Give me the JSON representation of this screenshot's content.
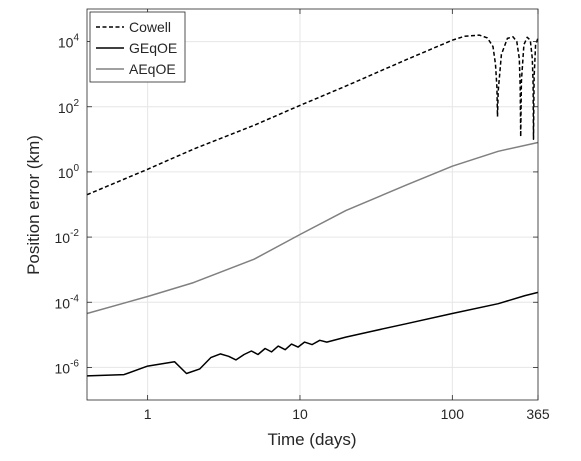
{
  "chart_data": {
    "type": "line",
    "xlabel": "Time (days)",
    "ylabel": "Position error (km)",
    "xscale": "log",
    "yscale": "log",
    "xlim": [
      0.4,
      365
    ],
    "ylim": [
      1e-07,
      100000.0
    ],
    "xticks": [
      {
        "value": 1,
        "label": "1"
      },
      {
        "value": 10,
        "label": "10"
      },
      {
        "value": 100,
        "label": "100"
      },
      {
        "value": 365,
        "label": "365"
      }
    ],
    "yticks": [
      {
        "value": 1e-06,
        "base": "10",
        "exp": "-6"
      },
      {
        "value": 0.0001,
        "base": "10",
        "exp": "-4"
      },
      {
        "value": 0.01,
        "base": "10",
        "exp": "-2"
      },
      {
        "value": 1,
        "base": "10",
        "exp": "0"
      },
      {
        "value": 100,
        "base": "10",
        "exp": "2"
      },
      {
        "value": 10000,
        "base": "10",
        "exp": "4"
      }
    ],
    "grid": true,
    "legend_position": "top-left",
    "series": [
      {
        "name": "Cowell",
        "color": "#000000",
        "style": "dashed",
        "points": [
          [
            0.4,
            0.2
          ],
          [
            1,
            1.2
          ],
          [
            2,
            5
          ],
          [
            5,
            27
          ],
          [
            10,
            110
          ],
          [
            20,
            430
          ],
          [
            50,
            2800
          ],
          [
            100,
            11000
          ],
          [
            120,
            14500
          ],
          [
            150,
            15800
          ],
          [
            170,
            13000
          ],
          [
            185,
            7000
          ],
          [
            192,
            2000
          ],
          [
            196,
            400
          ],
          [
            198,
            50
          ],
          [
            200,
            300
          ],
          [
            210,
            4000
          ],
          [
            230,
            12500
          ],
          [
            250,
            14000
          ],
          [
            265,
            10000
          ],
          [
            275,
            3000
          ],
          [
            279,
            400
          ],
          [
            281,
            12
          ],
          [
            284,
            600
          ],
          [
            295,
            8000
          ],
          [
            310,
            13500
          ],
          [
            325,
            11000
          ],
          [
            335,
            3000
          ],
          [
            339,
            500
          ],
          [
            341,
            10
          ],
          [
            344,
            800
          ],
          [
            352,
            8000
          ],
          [
            365,
            13000
          ]
        ]
      },
      {
        "name": "GEqOE",
        "color": "#000000",
        "style": "solid",
        "points": [
          [
            0.4,
            5.5e-07
          ],
          [
            0.7,
            6e-07
          ],
          [
            1,
            1.1e-06
          ],
          [
            1.5,
            1.5e-06
          ],
          [
            1.8,
            6.5e-07
          ],
          [
            2.2,
            9e-07
          ],
          [
            2.6,
            2e-06
          ],
          [
            3,
            2.6e-06
          ],
          [
            3.4,
            2.2e-06
          ],
          [
            3.8,
            1.7e-06
          ],
          [
            4.3,
            2.5e-06
          ],
          [
            4.8,
            3.2e-06
          ],
          [
            5.3,
            2.5e-06
          ],
          [
            5.9,
            3.8e-06
          ],
          [
            6.5,
            3e-06
          ],
          [
            7.2,
            4.5e-06
          ],
          [
            8,
            3.5e-06
          ],
          [
            8.8,
            5.2e-06
          ],
          [
            9.7,
            4.2e-06
          ],
          [
            10.7,
            6e-06
          ],
          [
            12,
            5e-06
          ],
          [
            13.5,
            6.8e-06
          ],
          [
            15,
            6e-06
          ],
          [
            20,
            8.5e-06
          ],
          [
            30,
            1.3e-05
          ],
          [
            50,
            2.2e-05
          ],
          [
            100,
            4.5e-05
          ],
          [
            200,
            9e-05
          ],
          [
            300,
            0.00016
          ],
          [
            365,
            0.0002
          ]
        ]
      },
      {
        "name": "AEqOE",
        "color": "#808080",
        "style": "solid",
        "points": [
          [
            0.4,
            4.5e-05
          ],
          [
            1,
            0.00015
          ],
          [
            2,
            0.0004
          ],
          [
            5,
            0.0021
          ],
          [
            10,
            0.012
          ],
          [
            20,
            0.065
          ],
          [
            50,
            0.4
          ],
          [
            100,
            1.5
          ],
          [
            200,
            4.3
          ],
          [
            365,
            8
          ]
        ]
      }
    ]
  }
}
